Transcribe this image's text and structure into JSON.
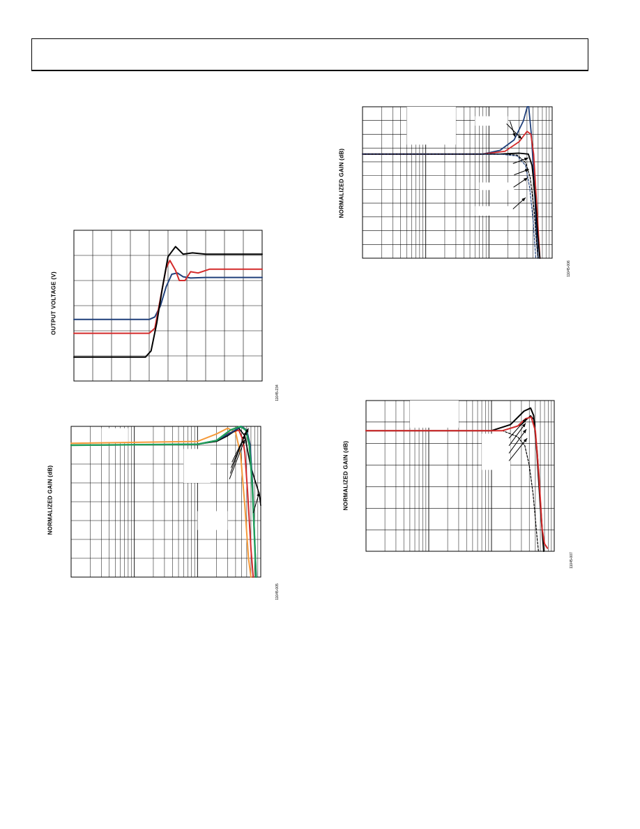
{
  "header": {
    "text": ""
  },
  "charts": [
    {
      "id": "c1",
      "type": "line",
      "xscale": "linear",
      "ylabel": "OUTPUT VOLTAGE (V)",
      "figure_id": "11045-234",
      "xlim": [
        0,
        10
      ],
      "ylim": [
        0,
        6
      ],
      "xdivisions": 10,
      "ydivisions": 6,
      "series": [
        {
          "color": "#1f3f7a",
          "width": 2,
          "points": [
            [
              0,
              2.45
            ],
            [
              4.0,
              2.45
            ],
            [
              4.3,
              2.55
            ],
            [
              4.6,
              3.0
            ],
            [
              4.9,
              3.75
            ],
            [
              5.2,
              4.25
            ],
            [
              5.5,
              4.3
            ],
            [
              5.8,
              4.15
            ],
            [
              6.2,
              4.1
            ],
            [
              7,
              4.12
            ],
            [
              10,
              4.12
            ]
          ]
        },
        {
          "color": "#d42a2a",
          "width": 2,
          "points": [
            [
              0,
              1.9
            ],
            [
              4.0,
              1.9
            ],
            [
              4.3,
              2.1
            ],
            [
              4.6,
              3.3
            ],
            [
              4.9,
              4.5
            ],
            [
              5.1,
              4.8
            ],
            [
              5.4,
              4.4
            ],
            [
              5.6,
              4.0
            ],
            [
              5.9,
              4.0
            ],
            [
              6.2,
              4.35
            ],
            [
              6.6,
              4.3
            ],
            [
              7.2,
              4.45
            ],
            [
              10,
              4.45
            ]
          ]
        },
        {
          "color": "#000000",
          "width": 2,
          "points": [
            [
              0,
              0.95
            ],
            [
              3.8,
              0.95
            ],
            [
              4.1,
              1.2
            ],
            [
              4.4,
              2.3
            ],
            [
              4.7,
              3.7
            ],
            [
              5.0,
              4.95
            ],
            [
              5.4,
              5.35
            ],
            [
              5.8,
              5.05
            ],
            [
              6.3,
              5.1
            ],
            [
              7,
              5.05
            ],
            [
              10,
              5.05
            ]
          ]
        }
      ],
      "annotations": []
    },
    {
      "id": "c2",
      "type": "line",
      "xscale": "log",
      "ylabel": "NORMALIZED GAIN (dB)",
      "figure_id": "11045-005",
      "xlim": [
        1,
        1000
      ],
      "ylim": [
        -7,
        1
      ],
      "ydivisions": 8,
      "series": [
        {
          "color": "#f59a3a",
          "width": 2,
          "points": [
            [
              1,
              0.1
            ],
            [
              100,
              0.2
            ],
            [
              200,
              0.6
            ],
            [
              300,
              0.9
            ],
            [
              400,
              0.7
            ],
            [
              480,
              -0.5
            ],
            [
              560,
              -3.2
            ],
            [
              640,
              -6.0
            ],
            [
              700,
              -7.0
            ]
          ]
        },
        {
          "color": "#d42a2a",
          "width": 2,
          "points": [
            [
              1,
              0.0
            ],
            [
              100,
              0.05
            ],
            [
              200,
              0.25
            ],
            [
              320,
              0.65
            ],
            [
              450,
              0.8
            ],
            [
              520,
              0.3
            ],
            [
              560,
              -0.4
            ],
            [
              620,
              -2.5
            ],
            [
              700,
              -5.5
            ],
            [
              760,
              -7.0
            ]
          ]
        },
        {
          "color": "#000000",
          "width": 1.6,
          "points": [
            [
              1,
              0.0
            ],
            [
              100,
              0.05
            ],
            [
              200,
              0.2
            ],
            [
              300,
              0.5
            ],
            [
              450,
              0.9
            ],
            [
              560,
              0.5
            ],
            [
              680,
              -1.0
            ],
            [
              800,
              -1.8
            ],
            [
              950,
              -2.6
            ],
            [
              1000,
              -3.2
            ]
          ]
        },
        {
          "color": "#1f3f7a",
          "width": 2,
          "points": [
            [
              1,
              0.0
            ],
            [
              100,
              0.05
            ],
            [
              200,
              0.25
            ],
            [
              350,
              0.7
            ],
            [
              500,
              1.0
            ],
            [
              600,
              0.8
            ],
            [
              680,
              0.0
            ],
            [
              740,
              -2.0
            ],
            [
              800,
              -5.0
            ],
            [
              850,
              -7.0
            ]
          ]
        },
        {
          "color": "#1f9e5a",
          "width": 2.4,
          "points": [
            [
              1,
              0.0
            ],
            [
              100,
              0.05
            ],
            [
              200,
              0.25
            ],
            [
              330,
              0.8
            ],
            [
              480,
              1.0
            ],
            [
              580,
              0.8
            ],
            [
              660,
              0.0
            ],
            [
              740,
              -2.3
            ],
            [
              810,
              -5.5
            ],
            [
              840,
              -7.0
            ]
          ]
        }
      ],
      "annotations": [
        {
          "from": [
            320,
            -1.8
          ],
          "to": [
            560,
            0.3
          ]
        },
        {
          "from": [
            330,
            -1.5
          ],
          "to": [
            560,
            0.55
          ]
        },
        {
          "from": [
            340,
            -1.2
          ],
          "to": [
            600,
            0.75
          ]
        },
        {
          "from": [
            350,
            -0.9
          ],
          "to": [
            640,
            0.9
          ]
        },
        {
          "from": [
            760,
            -3.6
          ],
          "to": [
            950,
            -2.5
          ]
        }
      ],
      "masks": [
        {
          "x": [
            60,
            160
          ],
          "y": [
            -2.0,
            -0.2
          ]
        },
        {
          "x": [
            100,
            300
          ],
          "y": [
            -4.5,
            -3.5
          ]
        },
        {
          "x": [
            3,
            8
          ],
          "y": [
            0.1,
            0.9
          ]
        }
      ]
    },
    {
      "id": "c3",
      "type": "line",
      "xscale": "log",
      "ylabel": "NORMALIZED GAIN (dB)",
      "figure_id": "11045-006",
      "xlim": [
        1,
        1000
      ],
      "ylim": [
        -11,
        5
      ],
      "ydivisions": 11,
      "series": [
        {
          "color": "#1f3f7a",
          "width": 1.8,
          "points": [
            [
              1,
              0.0
            ],
            [
              80,
              0.0
            ],
            [
              150,
              0.4
            ],
            [
              250,
              1.5
            ],
            [
              350,
              3.5
            ],
            [
              420,
              5.4
            ],
            [
              470,
              2.0
            ],
            [
              520,
              -3.0
            ],
            [
              570,
              -9.0
            ],
            [
              600,
              -11.0
            ]
          ]
        },
        {
          "color": "#d42a2a",
          "width": 1.8,
          "points": [
            [
              1,
              0.0
            ],
            [
              80,
              0.0
            ],
            [
              180,
              0.3
            ],
            [
              300,
              1.3
            ],
            [
              400,
              2.4
            ],
            [
              460,
              2.1
            ],
            [
              510,
              0.0
            ],
            [
              560,
              -4.5
            ],
            [
              620,
              -9.5
            ],
            [
              640,
              -11.0
            ]
          ]
        },
        {
          "color": "#000000",
          "width": 1.8,
          "points": [
            [
              1,
              0.0
            ],
            [
              150,
              0.0
            ],
            [
              300,
              0.1
            ],
            [
              420,
              0.0
            ],
            [
              480,
              -1.2
            ],
            [
              540,
              -4.5
            ],
            [
              590,
              -8.5
            ],
            [
              640,
              -11.0
            ]
          ]
        },
        {
          "color": "#000000",
          "width": 1.2,
          "dash": "3,2",
          "points": [
            [
              1,
              0.0
            ],
            [
              150,
              0.0
            ],
            [
              280,
              -0.1
            ],
            [
              380,
              -0.9
            ],
            [
              450,
              -2.5
            ],
            [
              520,
              -6.0
            ],
            [
              560,
              -9.0
            ],
            [
              600,
              -11.0
            ]
          ]
        },
        {
          "color": "#1f3f7a",
          "width": 1.2,
          "dash": "3,2",
          "points": [
            [
              1,
              0.0
            ],
            [
              150,
              0.0
            ],
            [
              280,
              -0.2
            ],
            [
              380,
              -1.2
            ],
            [
              440,
              -3.5
            ],
            [
              500,
              -7.0
            ],
            [
              550,
              -11.0
            ]
          ]
        }
      ],
      "annotations": [
        {
          "from": [
            190,
            3.2
          ],
          "to": [
            330,
            1.6
          ]
        },
        {
          "from": [
            215,
            3.5
          ],
          "to": [
            260,
            1.8
          ]
        },
        {
          "from": [
            240,
            -1.0
          ],
          "to": [
            420,
            -0.4
          ]
        },
        {
          "from": [
            250,
            -2.2
          ],
          "to": [
            430,
            -1.6
          ]
        },
        {
          "from": [
            245,
            -3.5
          ],
          "to": [
            410,
            -2.5
          ]
        },
        {
          "from": [
            240,
            -5.8
          ],
          "to": [
            380,
            -4.6
          ]
        }
      ],
      "masks": [
        {
          "x": [
            5,
            30
          ],
          "y": [
            1.0,
            5.0
          ]
        },
        {
          "x": [
            60,
            200
          ],
          "y": [
            3.0,
            4.0
          ]
        },
        {
          "x": [
            60,
            230
          ],
          "y": [
            -6.5,
            -5.5
          ]
        },
        {
          "x": [
            70,
            250
          ],
          "y": [
            -3.8,
            -3.0
          ]
        }
      ]
    },
    {
      "id": "c4",
      "type": "line",
      "xscale": "log",
      "ylabel": "NORMALIZED GAIN (dB)",
      "figure_id": "11045-007",
      "xlim": [
        1,
        1000
      ],
      "ylim": [
        -8,
        2
      ],
      "ydivisions": 7,
      "series": [
        {
          "color": "#000000",
          "width": 2,
          "points": [
            [
              1,
              0.0
            ],
            [
              100,
              0.0
            ],
            [
              200,
              0.4
            ],
            [
              330,
              1.3
            ],
            [
              420,
              1.5
            ],
            [
              470,
              1.0
            ],
            [
              530,
              -1.5
            ],
            [
              600,
              -5.0
            ],
            [
              680,
              -8.0
            ]
          ]
        },
        {
          "color": "#000000",
          "width": 1.2,
          "dash": "3,2",
          "points": [
            [
              1,
              0.0
            ],
            [
              150,
              0.0
            ],
            [
              260,
              -0.4
            ],
            [
              340,
              -1.0
            ],
            [
              400,
              -2.3
            ],
            [
              460,
              -4.2
            ],
            [
              530,
              -7.0
            ],
            [
              560,
              -8.0
            ]
          ]
        },
        {
          "color": "#000000",
          "width": 1.4,
          "points": [
            [
              1,
              0.0
            ],
            [
              150,
              0.0
            ],
            [
              300,
              0.4
            ],
            [
              420,
              1.0
            ],
            [
              480,
              0.7
            ],
            [
              540,
              -1.5
            ],
            [
              610,
              -5.0
            ],
            [
              680,
              -8.0
            ]
          ]
        },
        {
          "color": "#d42a2a",
          "width": 2,
          "points": [
            [
              1,
              0.0
            ],
            [
              150,
              0.0
            ],
            [
              260,
              0.3
            ],
            [
              350,
              0.8
            ],
            [
              430,
              0.9
            ],
            [
              500,
              0.0
            ],
            [
              570,
              -3.0
            ],
            [
              640,
              -6.5
            ],
            [
              700,
              -7.5
            ],
            [
              780,
              -7.8
            ]
          ]
        }
      ],
      "annotations": [
        {
          "from": [
            190,
            -0.5
          ],
          "to": [
            360,
            0.8
          ]
        },
        {
          "from": [
            190,
            -1.0
          ],
          "to": [
            350,
            0.5
          ]
        },
        {
          "from": [
            190,
            -1.5
          ],
          "to": [
            360,
            0.1
          ]
        },
        {
          "from": [
            190,
            -2.0
          ],
          "to": [
            370,
            -0.5
          ]
        }
      ],
      "masks": [
        {
          "x": [
            5,
            30
          ],
          "y": [
            0.2,
            2.0
          ]
        },
        {
          "x": [
            70,
            200
          ],
          "y": [
            -2.6,
            -0.2
          ]
        }
      ]
    }
  ]
}
